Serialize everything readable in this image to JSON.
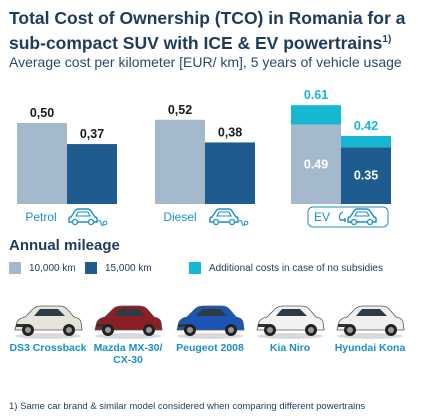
{
  "title": "Total Cost of Ownership (TCO) in Romania for a sub-compact SUV with ICE & EV powertrains",
  "title_sup": "1)",
  "subtitle": "Average cost per kilometer [EUR/ km], 5 years of vehicle usage",
  "colors": {
    "light": "#a4b9cc",
    "dark": "#1e5b8e",
    "cyan": "#15b7d2",
    "text": "#1f3b5a",
    "icon": "#1a8fc9"
  },
  "chart_data": {
    "type": "bar",
    "categories": [
      "Petrol",
      "Diesel",
      "EV"
    ],
    "category_icons": [
      "petrol-car-icon",
      "diesel-car-icon",
      "ev-car-icon"
    ],
    "series": [
      {
        "name": "10,000 km",
        "values": [
          0.5,
          0.52,
          0.49
        ],
        "labels": [
          "0,50",
          "0,52",
          "0.49"
        ]
      },
      {
        "name": "15,000 km",
        "values": [
          0.37,
          0.38,
          0.35
        ],
        "labels": [
          "0,37",
          "0,38",
          "0.35"
        ]
      }
    ],
    "stacked_addition": {
      "name": "Additional costs in case of no subsidies",
      "category": "EV",
      "totals": [
        0.61,
        0.42
      ],
      "total_labels": [
        "0.61",
        "0.42"
      ]
    },
    "ylim": [
      0,
      0.63
    ],
    "legend_title": "Annual mileage"
  },
  "cars": [
    {
      "name": "DS3 Crossback",
      "color": "#e6e3dc"
    },
    {
      "name": "Mazda MX-30/ CX-30",
      "color": "#8a1f25"
    },
    {
      "name": "Peugeot 2008",
      "color": "#1c56b5"
    },
    {
      "name": "Kia Niro",
      "color": "#f2f2f2"
    },
    {
      "name": "Hyundai Kona",
      "color": "#efefef"
    }
  ],
  "footnote": "1) Same car brand & similar model considered when comparing different powertrains"
}
